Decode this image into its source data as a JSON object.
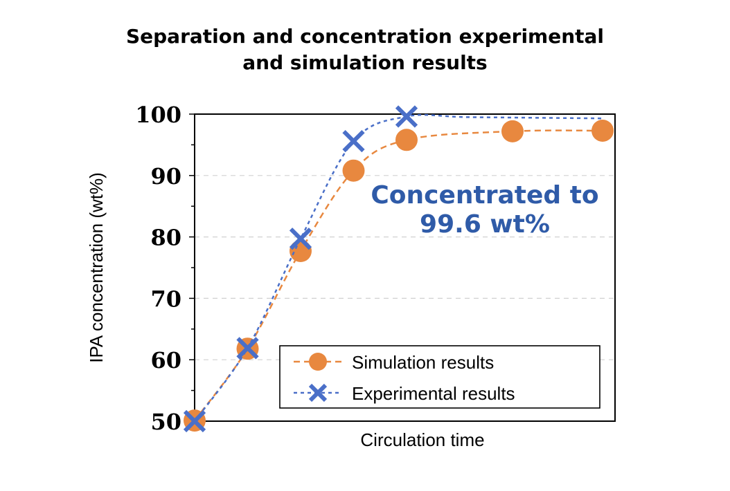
{
  "chart_data": {
    "type": "line",
    "title_lines": [
      "Separation and concentration experimental",
      "and simulation results"
    ],
    "xlabel": "Circulation time",
    "ylabel": "IPA concentration (wt%)",
    "ylim": [
      50,
      100
    ],
    "yticks": [
      "50",
      "60",
      "70",
      "80",
      "90",
      "100"
    ],
    "grid": "horizontal dashed",
    "legend_position": "bottom-right",
    "annotation": [
      "Concentrated to",
      "99.6 wt%"
    ],
    "x": [
      0,
      1,
      2,
      3,
      4,
      6,
      7.7
    ],
    "series": [
      {
        "name": "Simulation results",
        "marker": "circle",
        "line": "dashed",
        "color": "#E8883F",
        "x": [
          0,
          1,
          2,
          3,
          4,
          6,
          7.7
        ],
        "values": [
          50.1,
          61.8,
          77.7,
          90.8,
          95.8,
          97.2,
          97.3
        ]
      },
      {
        "name": "Experimental results",
        "marker": "x",
        "line": "dashed",
        "color": "#4A6FC8",
        "x": [
          0,
          1,
          2,
          3,
          4
        ],
        "values": [
          50.0,
          61.9,
          79.7,
          95.6,
          99.6
        ]
      }
    ]
  },
  "colors": {
    "simulation": "#E8883F",
    "experimental": "#4A6FC8",
    "annotation": "#2F5BA8"
  }
}
